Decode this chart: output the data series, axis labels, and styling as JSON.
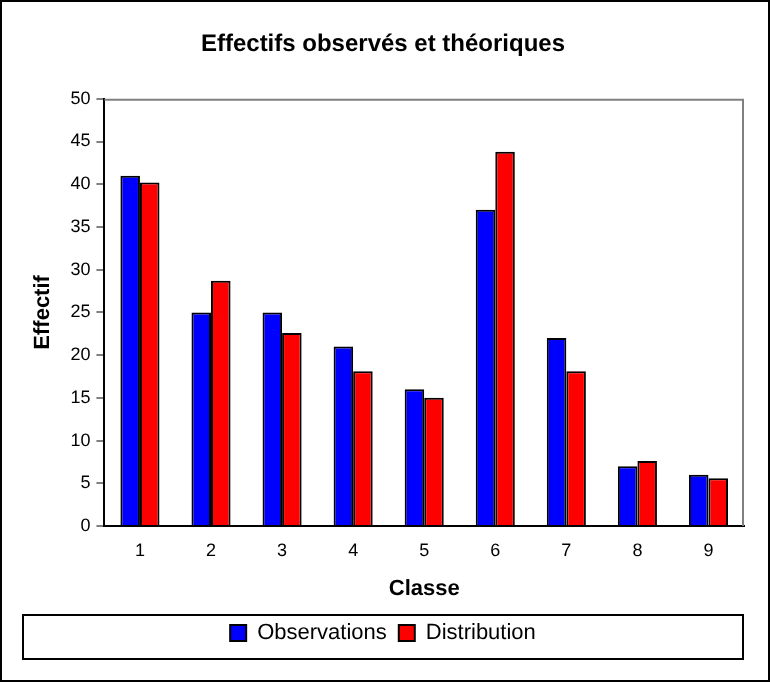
{
  "chart_data": {
    "type": "bar",
    "title": "Effectifs observés et théoriques",
    "xlabel": "Classe",
    "ylabel": "Effectif",
    "categories": [
      "1",
      "2",
      "3",
      "4",
      "5",
      "6",
      "7",
      "8",
      "9"
    ],
    "series": [
      {
        "name": "Observations",
        "color": "#0000ff",
        "values": [
          41,
          25,
          25,
          21,
          16,
          37,
          22,
          7,
          6
        ]
      },
      {
        "name": "Distribution",
        "color": "#ff0000",
        "values": [
          40.2,
          28.7,
          22.6,
          18.1,
          15,
          43.8,
          18.1,
          7.6,
          5.6
        ]
      }
    ],
    "ylim": [
      0,
      50
    ],
    "yticks": [
      0,
      5,
      10,
      15,
      20,
      25,
      30,
      35,
      40,
      45,
      50
    ],
    "grid": false,
    "legend": "bottom"
  }
}
